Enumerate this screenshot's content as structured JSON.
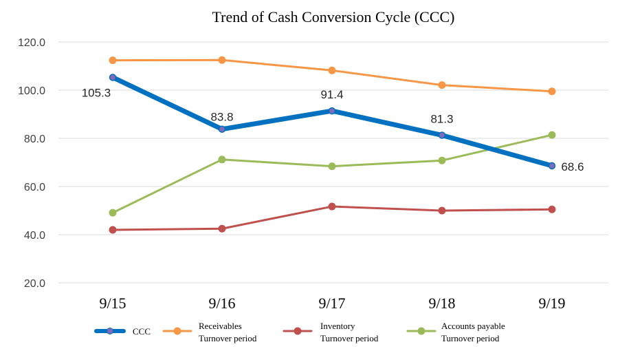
{
  "chart_data": {
    "type": "line",
    "title": "Trend of Cash Conversion Cycle (CCC)",
    "categories": [
      "9/15",
      "9/16",
      "9/17",
      "9/18",
      "9/19"
    ],
    "yticks": [
      "20.0",
      "40.0",
      "60.0",
      "80.0",
      "100.0",
      "120.0"
    ],
    "ylim": [
      20,
      120
    ],
    "grid": true,
    "legend_position": "bottom",
    "series": [
      {
        "name": "CCC",
        "values": [
          105.3,
          83.8,
          91.4,
          81.3,
          68.6
        ],
        "data_labels": [
          "105.3",
          "83.8",
          "91.4",
          "81.3",
          "68.6"
        ],
        "color": "#0070c0"
      },
      {
        "name": "Receivables Turnover period",
        "legend_lines": [
          "Receivables",
          "Turnover period"
        ],
        "values": [
          112.4,
          112.5,
          108.2,
          102.1,
          99.5
        ],
        "color": "#f79646"
      },
      {
        "name": "Inventory Turnover period",
        "legend_lines": [
          "Inventory",
          "Turnover period"
        ],
        "values": [
          42.0,
          42.5,
          51.7,
          50.0,
          50.5
        ],
        "color": "#c0504d"
      },
      {
        "name": "Accounts payable Turnover period",
        "legend_lines": [
          "Accounts payable",
          "Turnover period"
        ],
        "values": [
          49.1,
          71.2,
          68.4,
          70.8,
          81.4
        ],
        "color": "#9bbb59"
      }
    ]
  }
}
